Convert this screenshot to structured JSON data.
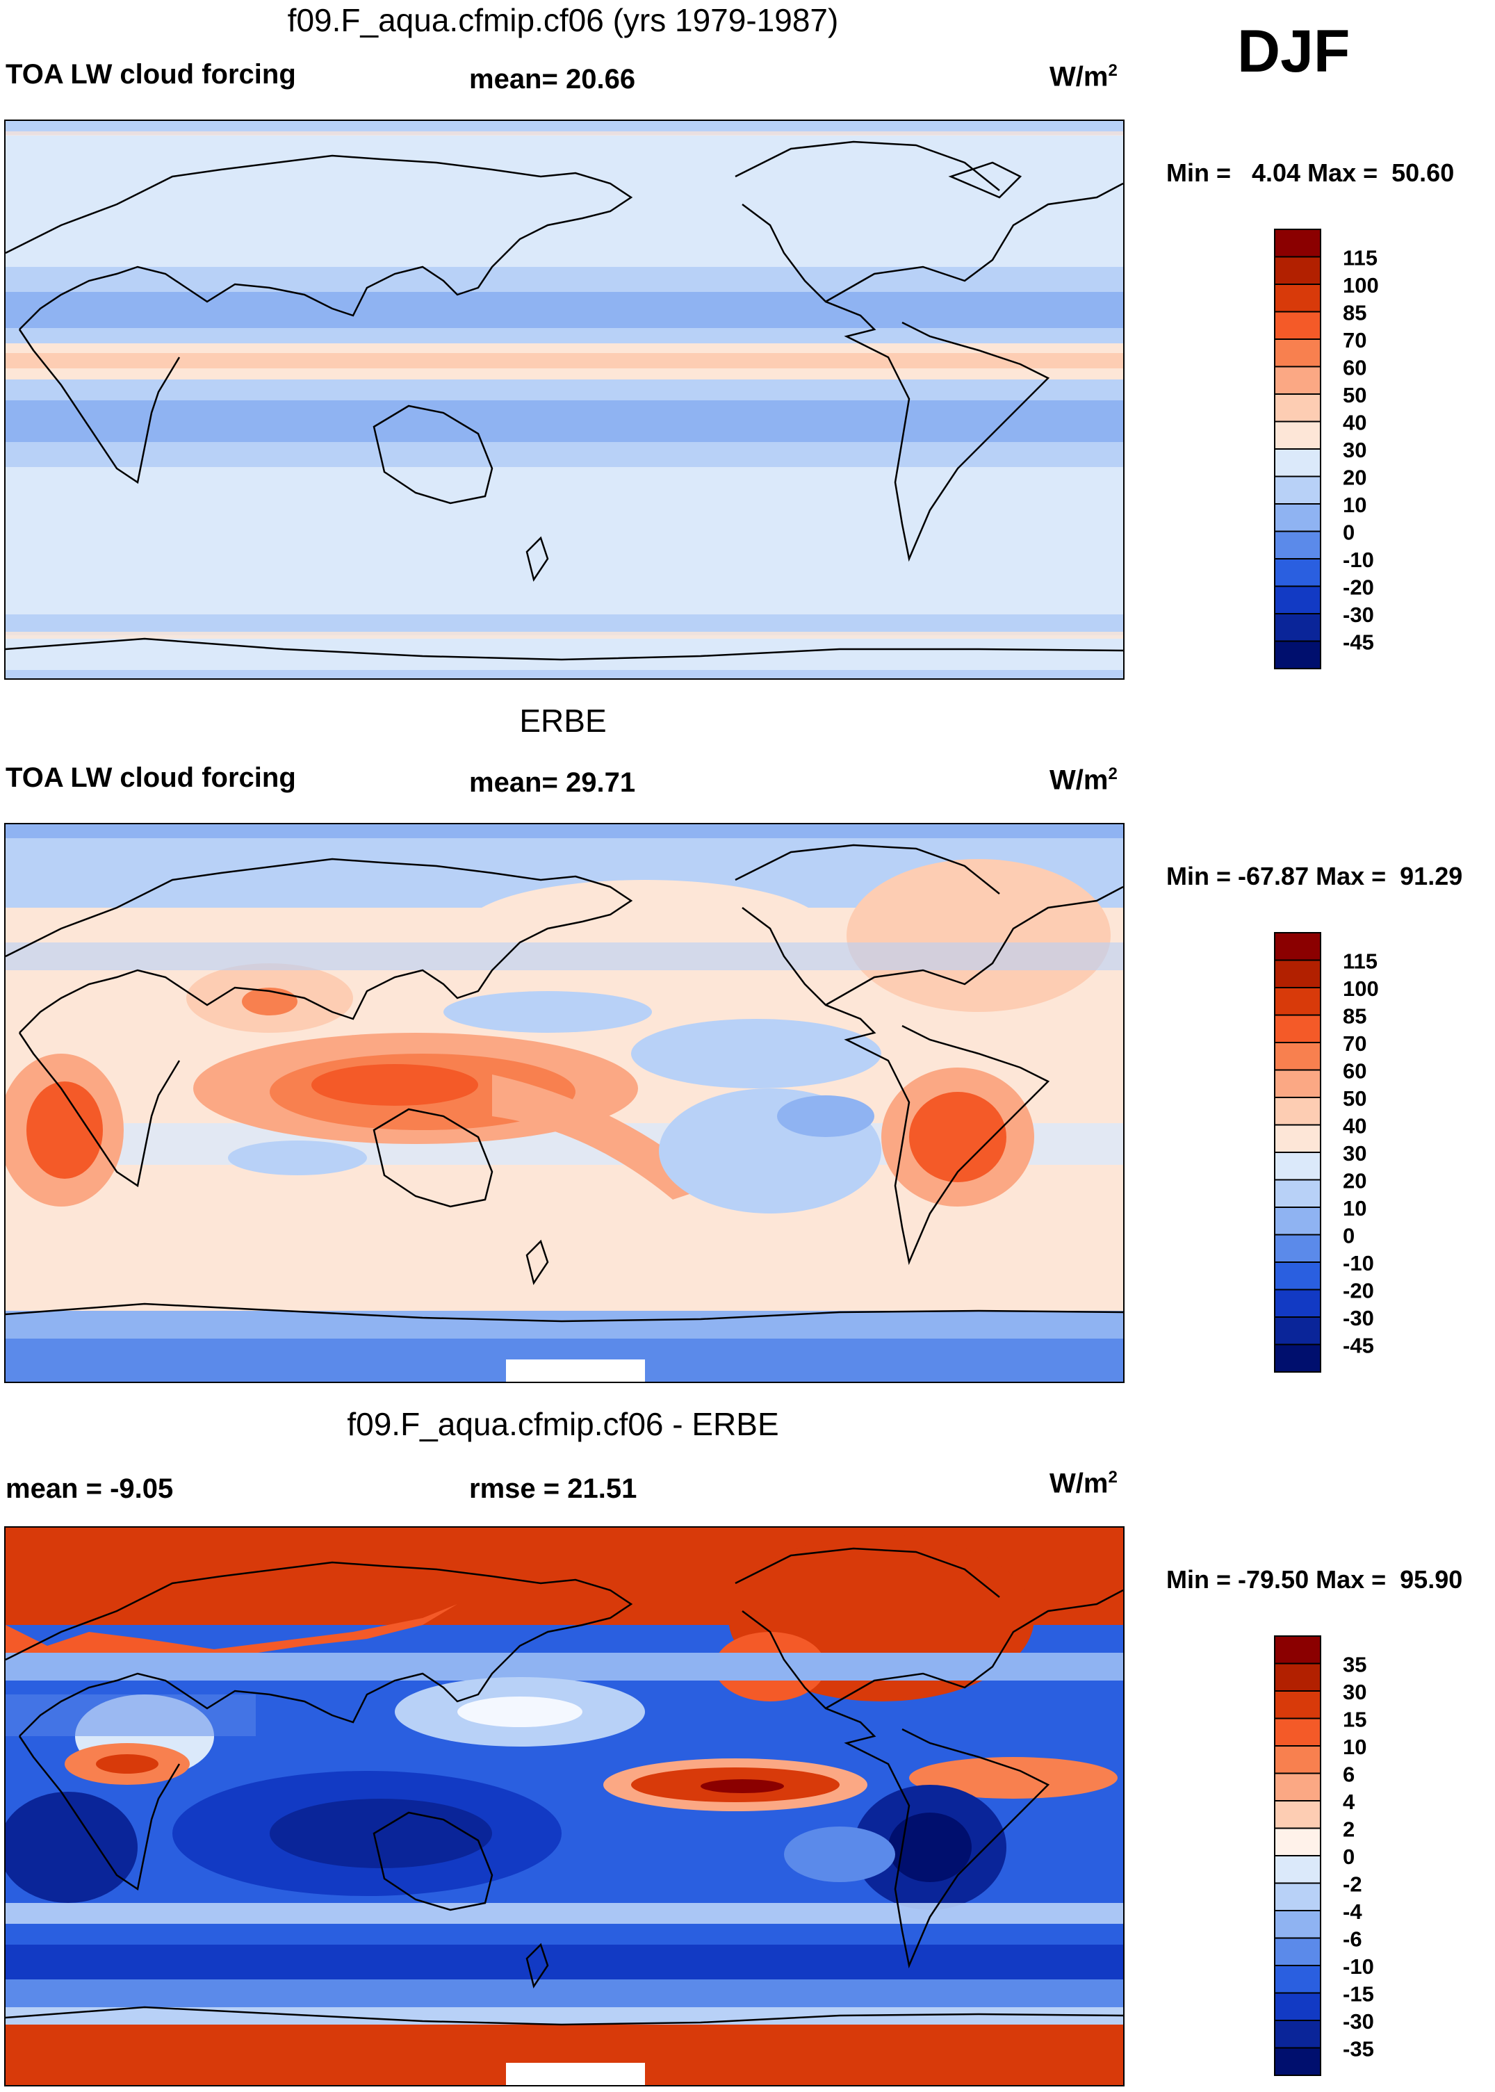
{
  "season": "DJF",
  "panels": [
    {
      "title": "f09.F_aqua.cfmip.cf06 (yrs 1979-1987)",
      "left_label": "TOA LW cloud forcing",
      "center_label": "mean=  20.66",
      "units": "W/m",
      "units_sup": "2",
      "minmax": "Min =   4.04 Max =  50.60",
      "colorbar": {
        "labels": [
          "115",
          "100",
          "85",
          "70",
          "60",
          "50",
          "40",
          "30",
          "20",
          "10",
          "0",
          "-10",
          "-20",
          "-30",
          "-45"
        ],
        "colors": [
          "#8b0000",
          "#b22000",
          "#d83a0a",
          "#f45a28",
          "#f8804f",
          "#fba884",
          "#fdcdb3",
          "#fde6d7",
          "#dbe9fa",
          "#b8d1f7",
          "#8fb3f2",
          "#5b8aea",
          "#2a5fe0",
          "#123ac4",
          "#0a2599",
          "#000f6e"
        ]
      }
    },
    {
      "title": "ERBE",
      "left_label": "TOA LW cloud forcing",
      "center_label": "mean=  29.71",
      "units": "W/m",
      "units_sup": "2",
      "minmax": "Min = -67.87 Max =  91.29",
      "colorbar": {
        "labels": [
          "115",
          "100",
          "85",
          "70",
          "60",
          "50",
          "40",
          "30",
          "20",
          "10",
          "0",
          "-10",
          "-20",
          "-30",
          "-45"
        ],
        "colors": [
          "#8b0000",
          "#b22000",
          "#d83a0a",
          "#f45a28",
          "#f8804f",
          "#fba884",
          "#fdcdb3",
          "#fde6d7",
          "#dbe9fa",
          "#b8d1f7",
          "#8fb3f2",
          "#5b8aea",
          "#2a5fe0",
          "#123ac4",
          "#0a2599",
          "#000f6e"
        ]
      }
    },
    {
      "title": "f09.F_aqua.cfmip.cf06 - ERBE",
      "left_label": "mean =  -9.05",
      "center_label": "rmse =  21.51",
      "units": "W/m",
      "units_sup": "2",
      "minmax": "Min = -79.50 Max =  95.90",
      "colorbar": {
        "labels": [
          "35",
          "30",
          "15",
          "10",
          "6",
          "4",
          "2",
          "0",
          "-2",
          "-4",
          "-6",
          "-10",
          "-15",
          "-30",
          "-35"
        ],
        "colors": [
          "#8b0000",
          "#b22000",
          "#d83a0a",
          "#f45a28",
          "#f8804f",
          "#fba884",
          "#fdcdb3",
          "#fff2ea",
          "#dbe9fa",
          "#b8d1f7",
          "#8fb3f2",
          "#5b8aea",
          "#2a5fe0",
          "#123ac4",
          "#0a2599",
          "#000f6e"
        ]
      }
    }
  ]
}
